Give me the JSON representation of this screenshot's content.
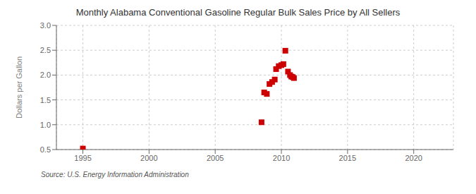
{
  "chart_data": {
    "type": "scatter",
    "title": "Monthly Alabama Conventional Gasoline Regular Bulk Sales Price by All Sellers",
    "ylabel": "Dollars per Gallon",
    "annotations": [
      "Source: U.S. Energy Information Administration"
    ],
    "x": [
      1995.0,
      2008.5,
      2008.7,
      2008.9,
      2009.1,
      2009.3,
      2009.5,
      2009.6,
      2009.8,
      2010.0,
      2010.15,
      2010.3,
      2010.5,
      2010.65,
      2010.75,
      2010.85,
      2010.95
    ],
    "values": [
      0.52,
      1.05,
      1.65,
      1.62,
      1.82,
      1.86,
      1.91,
      2.12,
      2.18,
      2.2,
      2.22,
      2.49,
      2.07,
      2.0,
      1.97,
      1.96,
      1.94
    ],
    "color": "#cc0000",
    "marker": "square",
    "xlim": [
      1993,
      2023
    ],
    "ylim": [
      0.5,
      3.0
    ],
    "xticks": [
      1995,
      2000,
      2005,
      2010,
      2015,
      2020
    ],
    "yticks": [
      {
        "value": 0.5,
        "label": "0.5"
      },
      {
        "value": 1.0,
        "label": "1.0"
      },
      {
        "value": 1.5,
        "label": "1.5"
      },
      {
        "value": 2.0,
        "label": "2.0"
      },
      {
        "value": 2.5,
        "label": "2.5"
      },
      {
        "value": 3.0,
        "label": "3.0"
      }
    ],
    "grid": true
  }
}
